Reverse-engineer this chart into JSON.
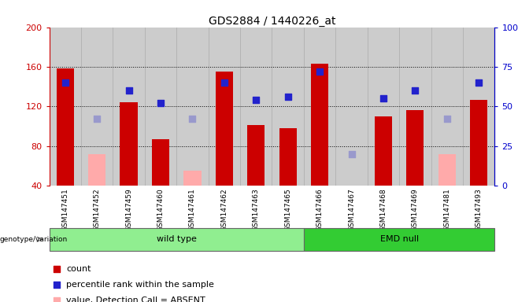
{
  "title": "GDS2884 / 1440226_at",
  "samples": [
    "GSM147451",
    "GSM147452",
    "GSM147459",
    "GSM147460",
    "GSM147461",
    "GSM147462",
    "GSM147463",
    "GSM147465",
    "GSM147466",
    "GSM147467",
    "GSM147468",
    "GSM147469",
    "GSM147481",
    "GSM147493"
  ],
  "wild_type_count": 8,
  "emd_null_count": 6,
  "ylim_left": [
    40,
    200
  ],
  "ylim_right": [
    0,
    100
  ],
  "yticks_left": [
    40,
    80,
    120,
    160,
    200
  ],
  "yticks_right": [
    0,
    25,
    50,
    75,
    100
  ],
  "count_values": [
    158,
    null,
    124,
    87,
    null,
    155,
    101,
    98,
    163,
    null,
    110,
    116,
    null,
    127
  ],
  "absent_value_values": [
    null,
    72,
    null,
    null,
    55,
    null,
    null,
    null,
    null,
    null,
    null,
    null,
    72,
    null
  ],
  "percentile_values": [
    65,
    null,
    60,
    52,
    null,
    65,
    54,
    56,
    72,
    null,
    55,
    60,
    null,
    65
  ],
  "absent_rank_values": [
    null,
    42,
    null,
    null,
    42,
    null,
    null,
    null,
    null,
    20,
    null,
    null,
    42,
    null
  ],
  "bar_color_red": "#cc0000",
  "bar_color_pink": "#ffaaaa",
  "dot_color_blue": "#2222cc",
  "dot_color_lightblue": "#9999cc",
  "left_axis_color": "#cc0000",
  "right_axis_color": "#0000cc",
  "wild_type_bg": "#90EE90",
  "emd_null_bg": "#33cc33",
  "col_bg": "#cccccc",
  "col_border": "#aaaaaa"
}
